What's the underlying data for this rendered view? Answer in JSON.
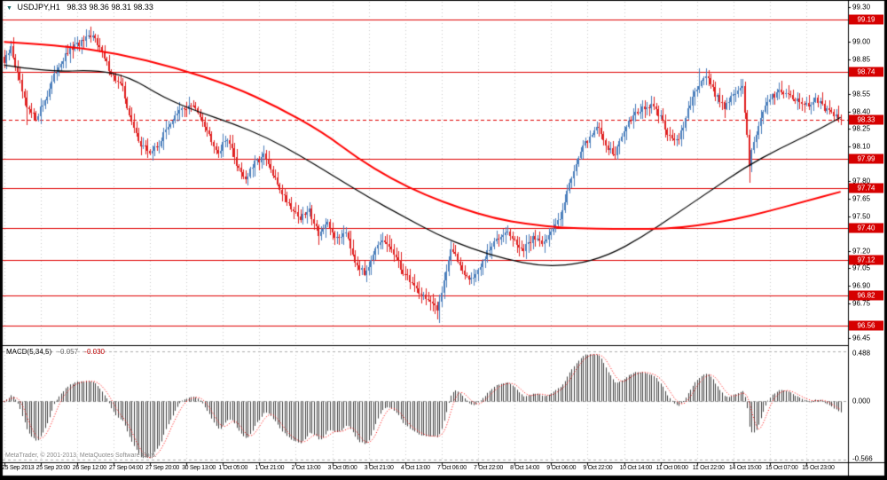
{
  "title": {
    "marker_glyph": "▼",
    "symbol": "USDJPY,H1",
    "ohlc_display": "98.33 98.36 98.31 98.33"
  },
  "copyright": "MetaTrader, © 2001-2013, MetaQuotes Software Corp.",
  "colors": {
    "background": "#ffffff",
    "frame": "#000000",
    "grid": "#c9c9c9",
    "bull": "#4a7ebb",
    "bear": "#df1f1f",
    "ma_fast": "#000000",
    "ma_slow": "#ff0000",
    "level_line": "#e00000",
    "badge_bg": "#d60000",
    "badge_text": "#ffffff",
    "macd_hist": "#3f3f3f",
    "macd_signal": "#ff0000",
    "macd_zero": "#aaaaaa"
  },
  "chart_data": {
    "type": "candlestick",
    "title": "USDJPY,H1",
    "ohlc_display": "98.33 98.36 98.31 98.33",
    "timeframe": "H1",
    "ylim": [
      96.45,
      99.3
    ],
    "y_tick_step": 0.15,
    "y_tick_labels": [
      "99.30",
      "99.15",
      "99.00",
      "98.85",
      "98.70",
      "98.55",
      "98.40",
      "98.25",
      "98.10",
      "97.95",
      "97.80",
      "97.65",
      "97.50",
      "97.35",
      "97.20",
      "97.05",
      "96.90",
      "96.75",
      "96.60",
      "96.45"
    ],
    "level_lines": [
      99.19,
      98.74,
      97.99,
      97.74,
      97.4,
      97.12,
      96.82,
      96.56
    ],
    "current_price": 98.33,
    "x_tick_labels": [
      "25 Sep 2013",
      "25 Sep 20:00",
      "26 Sep 12:00",
      "27 Sep 04:00",
      "27 Sep 20:00",
      "30 Sep 13:00",
      "1 Oct 05:00",
      "1 Oct 21:00",
      "2 Oct 13:00",
      "3 Oct 05:00",
      "3 Oct 21:00",
      "4 Oct 13:00",
      "7 Oct 06:00",
      "7 Oct 22:00",
      "8 Oct 14:00",
      "9 Oct 06:00",
      "9 Oct 22:00",
      "10 Oct 14:00",
      "11 Oct 06:00",
      "11 Oct 22:00",
      "14 Oct 15:00",
      "15 Oct 07:00",
      "15 Oct 23:00"
    ],
    "candle_count": 368,
    "candles_per_x_gridline": 16,
    "price_path_anchors": [
      [
        0,
        98.82
      ],
      [
        3,
        98.95
      ],
      [
        6,
        98.72
      ],
      [
        10,
        98.42
      ],
      [
        14,
        98.35
      ],
      [
        18,
        98.5
      ],
      [
        24,
        98.8
      ],
      [
        30,
        98.95
      ],
      [
        36,
        99.02
      ],
      [
        40,
        99.05
      ],
      [
        44,
        98.85
      ],
      [
        48,
        98.7
      ],
      [
        52,
        98.6
      ],
      [
        56,
        98.3
      ],
      [
        60,
        98.12
      ],
      [
        64,
        98.05
      ],
      [
        68,
        98.12
      ],
      [
        72,
        98.28
      ],
      [
        78,
        98.42
      ],
      [
        82,
        98.45
      ],
      [
        86,
        98.38
      ],
      [
        90,
        98.2
      ],
      [
        94,
        98.05
      ],
      [
        98,
        98.18
      ],
      [
        102,
        97.95
      ],
      [
        106,
        97.82
      ],
      [
        110,
        97.95
      ],
      [
        114,
        98.02
      ],
      [
        118,
        97.85
      ],
      [
        122,
        97.7
      ],
      [
        126,
        97.58
      ],
      [
        130,
        97.48
      ],
      [
        134,
        97.55
      ],
      [
        138,
        97.35
      ],
      [
        142,
        97.42
      ],
      [
        146,
        97.3
      ],
      [
        150,
        97.38
      ],
      [
        154,
        97.12
      ],
      [
        158,
        97.0
      ],
      [
        162,
        97.18
      ],
      [
        166,
        97.28
      ],
      [
        170,
        97.22
      ],
      [
        174,
        97.05
      ],
      [
        178,
        96.95
      ],
      [
        182,
        96.85
      ],
      [
        186,
        96.78
      ],
      [
        190,
        96.68
      ],
      [
        193,
        96.95
      ],
      [
        196,
        97.22
      ],
      [
        200,
        97.08
      ],
      [
        204,
        96.95
      ],
      [
        208,
        97.02
      ],
      [
        212,
        97.18
      ],
      [
        216,
        97.3
      ],
      [
        220,
        97.38
      ],
      [
        224,
        97.28
      ],
      [
        228,
        97.2
      ],
      [
        232,
        97.32
      ],
      [
        236,
        97.28
      ],
      [
        240,
        97.35
      ],
      [
        244,
        97.5
      ],
      [
        248,
        97.78
      ],
      [
        252,
        98.02
      ],
      [
        256,
        98.15
      ],
      [
        260,
        98.28
      ],
      [
        264,
        98.12
      ],
      [
        268,
        98.02
      ],
      [
        272,
        98.25
      ],
      [
        276,
        98.38
      ],
      [
        280,
        98.42
      ],
      [
        284,
        98.45
      ],
      [
        288,
        98.35
      ],
      [
        292,
        98.18
      ],
      [
        296,
        98.15
      ],
      [
        300,
        98.4
      ],
      [
        304,
        98.62
      ],
      [
        308,
        98.72
      ],
      [
        312,
        98.55
      ],
      [
        316,
        98.45
      ],
      [
        320,
        98.55
      ],
      [
        324,
        98.6
      ],
      [
        326,
        98.2
      ],
      [
        327,
        97.95
      ],
      [
        329,
        98.15
      ],
      [
        332,
        98.35
      ],
      [
        336,
        98.5
      ],
      [
        340,
        98.6
      ],
      [
        344,
        98.55
      ],
      [
        348,
        98.5
      ],
      [
        352,
        98.45
      ],
      [
        356,
        98.52
      ],
      [
        360,
        98.42
      ],
      [
        364,
        98.36
      ],
      [
        367,
        98.33
      ]
    ],
    "spikes": [
      {
        "i": 10,
        "low": 98.28
      },
      {
        "i": 38,
        "high": 99.13
      },
      {
        "i": 191,
        "low": 96.58
      },
      {
        "i": 305,
        "high": 98.77
      },
      {
        "i": 327,
        "low": 97.79
      }
    ],
    "ma_fast_anchors": [
      [
        0,
        98.8
      ],
      [
        20,
        98.74
      ],
      [
        40,
        98.76
      ],
      [
        55,
        98.7
      ],
      [
        70,
        98.52
      ],
      [
        85,
        98.4
      ],
      [
        100,
        98.3
      ],
      [
        115,
        98.18
      ],
      [
        130,
        98.02
      ],
      [
        145,
        97.84
      ],
      [
        160,
        97.66
      ],
      [
        175,
        97.5
      ],
      [
        190,
        97.34
      ],
      [
        205,
        97.22
      ],
      [
        220,
        97.13
      ],
      [
        235,
        97.07
      ],
      [
        250,
        97.08
      ],
      [
        265,
        97.16
      ],
      [
        280,
        97.32
      ],
      [
        295,
        97.52
      ],
      [
        310,
        97.72
      ],
      [
        325,
        97.92
      ],
      [
        340,
        98.08
      ],
      [
        355,
        98.22
      ],
      [
        367,
        98.35
      ]
    ],
    "ma_slow_anchors": [
      [
        0,
        99.0
      ],
      [
        25,
        98.97
      ],
      [
        50,
        98.9
      ],
      [
        75,
        98.78
      ],
      [
        100,
        98.62
      ],
      [
        120,
        98.44
      ],
      [
        140,
        98.22
      ],
      [
        155,
        98.0
      ],
      [
        170,
        97.82
      ],
      [
        185,
        97.68
      ],
      [
        200,
        97.57
      ],
      [
        215,
        97.48
      ],
      [
        230,
        97.43
      ],
      [
        245,
        97.4
      ],
      [
        260,
        97.39
      ],
      [
        275,
        97.39
      ],
      [
        290,
        97.39
      ],
      [
        305,
        97.42
      ],
      [
        320,
        97.47
      ],
      [
        335,
        97.54
      ],
      [
        350,
        97.62
      ],
      [
        367,
        97.71
      ]
    ],
    "macd": {
      "label": "MACD(5,34,5)",
      "value_display": "-0.057",
      "signal_display": "-0.030",
      "ylim": [
        -0.566,
        0.488
      ],
      "scale_labels": [
        "0.488",
        "0.000",
        "-0.566"
      ]
    }
  }
}
